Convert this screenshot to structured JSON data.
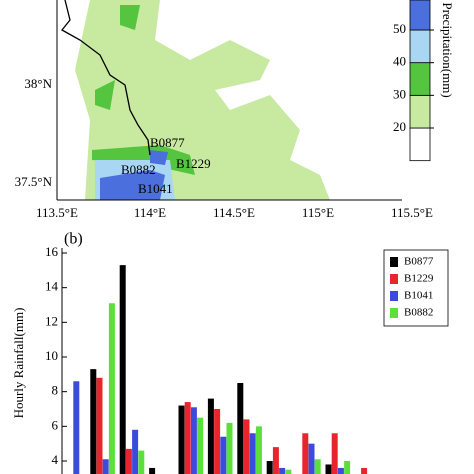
{
  "map": {
    "xticks": [
      "113.5°E",
      "114°E",
      "114.5°E",
      "115°E",
      "115.5°E"
    ],
    "yticks": [
      "38°N",
      "37.5°N"
    ],
    "stations": [
      "B0877",
      "B0882",
      "B1229",
      "B1041"
    ],
    "colorbar": {
      "label": "Precipitation(mm)",
      "ticks": [
        20,
        30,
        40,
        50
      ],
      "colors": [
        "#ffffff",
        "#c8eaa0",
        "#55c43e",
        "#a9d6f2",
        "#4b6fdc"
      ]
    }
  },
  "chart_data": {
    "type": "bar",
    "panel_label": "(b)",
    "y_label": "Hourly Rainfall(mm)",
    "categories": [
      null,
      null,
      null,
      null,
      null,
      null,
      null,
      null,
      null,
      null,
      null
    ],
    "series": [
      {
        "name": "B0877",
        "color": "#000000",
        "values": [
          null,
          9.3,
          15.3,
          3.6,
          7.2,
          7.6,
          8.5,
          4.0,
          null,
          3.8,
          null
        ]
      },
      {
        "name": "B1229",
        "color": "#e8242c",
        "values": [
          null,
          8.8,
          4.7,
          null,
          7.4,
          7.0,
          6.4,
          4.8,
          5.6,
          5.6,
          3.6
        ]
      },
      {
        "name": "B1041",
        "color": "#3b4bdc",
        "values": [
          8.6,
          4.1,
          5.8,
          null,
          7.1,
          5.4,
          5.6,
          3.6,
          5.0,
          3.6,
          null
        ]
      },
      {
        "name": "B0882",
        "color": "#5be03a",
        "values": [
          null,
          13.1,
          4.6,
          null,
          6.5,
          6.2,
          6.0,
          3.5,
          4.1,
          4.0,
          null
        ]
      }
    ],
    "ylim": [
      3.25,
      16
    ],
    "yticks": [
      4,
      6,
      8,
      10,
      12,
      14,
      16
    ],
    "legend": "upper right"
  }
}
